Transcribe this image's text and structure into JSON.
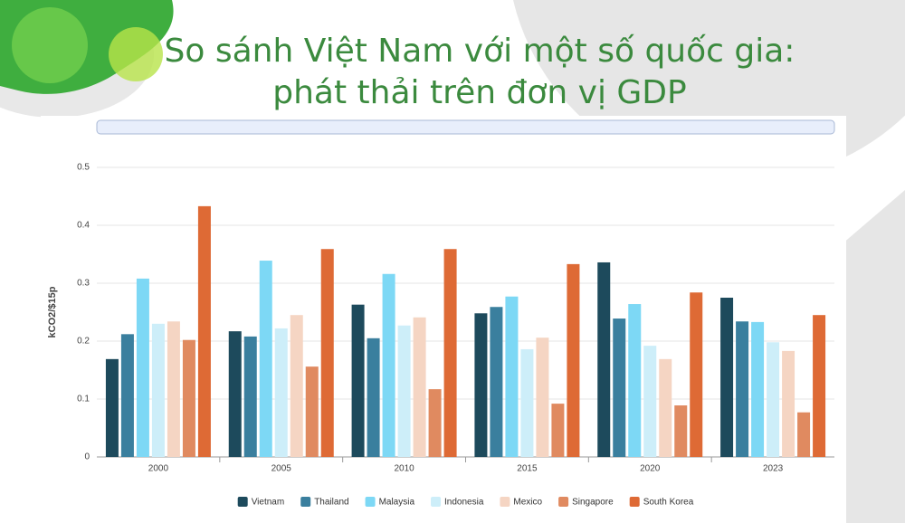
{
  "chart_data": {
    "type": "bar",
    "title": [
      "So sánh Việt Nam với một số quốc gia:",
      "phát thải trên đơn vị GDP"
    ],
    "y_label": "kCO2/$15p",
    "categories": [
      "2000",
      "2005",
      "2010",
      "2015",
      "2020",
      "2023"
    ],
    "series": [
      {
        "name": "Vietnam",
        "color": "#1d4a5c",
        "values": [
          0.169,
          0.217,
          0.263,
          0.248,
          0.336,
          0.275
        ]
      },
      {
        "name": "Thailand",
        "color": "#3a7f9e",
        "values": [
          0.212,
          0.208,
          0.205,
          0.259,
          0.239,
          0.234
        ]
      },
      {
        "name": "Malaysia",
        "color": "#7dd8f5",
        "values": [
          0.308,
          0.339,
          0.316,
          0.277,
          0.264,
          0.233
        ]
      },
      {
        "name": "Indonesia",
        "color": "#cdeef9",
        "values": [
          0.23,
          0.222,
          0.227,
          0.186,
          0.192,
          0.198
        ]
      },
      {
        "name": "Mexico",
        "color": "#f5d5c3",
        "values": [
          0.234,
          0.245,
          0.241,
          0.206,
          0.169,
          0.183
        ]
      },
      {
        "name": "Singapore",
        "color": "#e08a60",
        "values": [
          0.202,
          0.156,
          0.117,
          0.092,
          0.089,
          0.077
        ]
      },
      {
        "name": "South Korea",
        "color": "#de6a35",
        "values": [
          0.433,
          0.359,
          0.359,
          0.333,
          0.284,
          0.245
        ]
      }
    ],
    "ylim": [
      0,
      0.5
    ],
    "yticks": [
      0,
      0.1,
      0.2,
      0.3,
      0.4,
      0.5
    ],
    "grid": true,
    "legend": "bottom"
  }
}
